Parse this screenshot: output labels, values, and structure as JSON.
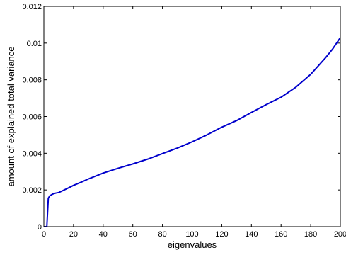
{
  "chart_data": {
    "type": "line",
    "title": "",
    "xlabel": "eigenvalues",
    "ylabel": "amount of explained total variance",
    "xlim": [
      0,
      200
    ],
    "ylim": [
      0,
      0.012
    ],
    "x_ticks": [
      0,
      20,
      40,
      60,
      80,
      100,
      120,
      140,
      160,
      180,
      200
    ],
    "x_tick_labels": [
      "0",
      "20",
      "40",
      "60",
      "80",
      "100",
      "120",
      "140",
      "160",
      "180",
      "200"
    ],
    "y_ticks": [
      0,
      0.002,
      0.004,
      0.006,
      0.008,
      0.01,
      0.012
    ],
    "y_tick_labels": [
      "0",
      "0.002",
      "0.004",
      "0.006",
      "0.008",
      "0.01",
      "0.012"
    ],
    "grid": false,
    "line_color": "#0000cc",
    "series": [
      {
        "x": [
          0,
          1,
          2,
          3,
          4,
          6,
          8,
          10,
          15,
          20,
          25,
          30,
          40,
          50,
          60,
          70,
          80,
          90,
          100,
          110,
          120,
          130,
          140,
          150,
          160,
          170,
          180,
          190,
          195,
          200
        ],
        "values": [
          0,
          0,
          0,
          0.00155,
          0.00168,
          0.00178,
          0.00183,
          0.00186,
          0.00205,
          0.00225,
          0.00242,
          0.0026,
          0.00292,
          0.00318,
          0.00342,
          0.00368,
          0.00398,
          0.00428,
          0.00462,
          0.005,
          0.00542,
          0.00578,
          0.00622,
          0.00665,
          0.00705,
          0.0076,
          0.0083,
          0.0092,
          0.0097,
          0.0103
        ]
      }
    ]
  }
}
